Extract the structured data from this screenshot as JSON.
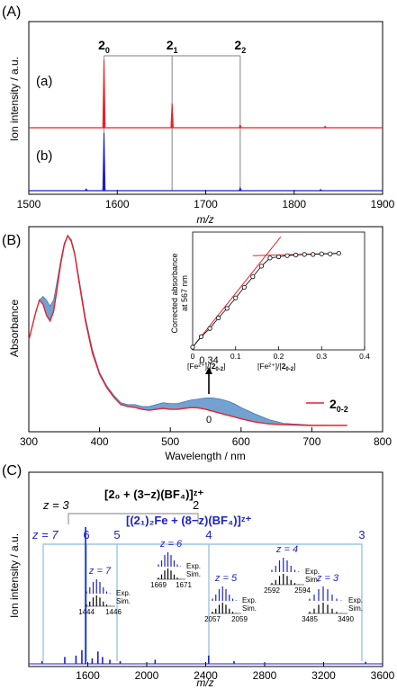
{
  "panelA": {
    "label": "(A)",
    "ylabel": "Ion intensity / a.u.",
    "xlabel": "m/z",
    "trace_a_label": "(a)",
    "trace_b_label": "(b)",
    "peak_labels": [
      {
        "base": "2",
        "sub": "0",
        "mz": 1585
      },
      {
        "base": "2",
        "sub": "1",
        "mz": 1662
      },
      {
        "base": "2",
        "sub": "2",
        "mz": 1739
      }
    ],
    "colors": {
      "a": "#e8202a",
      "b": "#1b20c8"
    }
  },
  "panelB": {
    "label": "(B)",
    "ylabel": "Absorbance",
    "xlabel": "Wavelength / nm",
    "legend_base": "2",
    "legend_sub": "0-2",
    "arrow_top": "0.34",
    "arrow_bottom": "0",
    "inset": {
      "ylabel_line1": "Corrected absorbance",
      "ylabel_line2": "at 567 nm",
      "xlabel_left_line1": "[Fe²⁺]/[",
      "xlabel_left_bold": "2",
      "xlabel_left_sub": "0-2",
      "xlabel_right_pre": "[Fe²⁺]/[",
      "xlabel_right_bold": "2",
      "xlabel_right_sub": "0-2"
    }
  },
  "panelC": {
    "label": "(C)",
    "ylabel": "Ion intensity / a.u.",
    "xlabel": "m/z",
    "series1_label": "[2₀ + (3−z)(BF₄)]ᶻ⁺",
    "series1_z_prefix": "z = 3",
    "series1_z_end": "2",
    "series2_label": "[(2₁)₂Fe + (8−z)(BF₄)]ᶻ⁺",
    "series2_z_prefix": "z = 7",
    "series2_z": [
      "6",
      "5",
      "4",
      "3"
    ],
    "insets": [
      {
        "z": "z = 7",
        "ticks": [
          "1444",
          "1446"
        ]
      },
      {
        "z": "z = 6",
        "ticks": [
          "1669",
          "1671"
        ]
      },
      {
        "z": "z = 5",
        "ticks": [
          "2057",
          "2059"
        ]
      },
      {
        "z": "z = 4",
        "ticks": [
          "2592",
          "2594"
        ]
      },
      {
        "z": "z = 3",
        "ticks": [
          "3485",
          "3490"
        ]
      }
    ],
    "exp_label": "Exp.",
    "sim_label": "Sim."
  },
  "chart_data": [
    {
      "type": "line",
      "panel": "A",
      "xlim": [
        1500,
        1900
      ],
      "xticks": [
        1500,
        1600,
        1700,
        1800,
        1900
      ],
      "series": [
        {
          "name": "(a)",
          "peaks": [
            [
              1585,
              1.0
            ],
            [
              1662,
              0.36
            ],
            [
              1739,
              0.04
            ],
            [
              1835,
              0.02
            ]
          ]
        },
        {
          "name": "(b)",
          "peaks": [
            [
              1585,
              1.0
            ],
            [
              1739,
              0.05
            ],
            [
              1565,
              0.03
            ],
            [
              1830,
              0.02
            ]
          ]
        }
      ]
    },
    {
      "type": "line",
      "panel": "B",
      "xlim": [
        300,
        800
      ],
      "xticks": [
        300,
        400,
        500,
        600,
        700,
        800
      ],
      "spectrum_red": [
        [
          300,
          0.45
        ],
        [
          310,
          0.6
        ],
        [
          315,
          0.66
        ],
        [
          320,
          0.64
        ],
        [
          325,
          0.58
        ],
        [
          330,
          0.55
        ],
        [
          335,
          0.6
        ],
        [
          340,
          0.72
        ],
        [
          345,
          0.85
        ],
        [
          350,
          0.95
        ],
        [
          355,
          1.0
        ],
        [
          360,
          0.97
        ],
        [
          365,
          0.9
        ],
        [
          370,
          0.78
        ],
        [
          380,
          0.55
        ],
        [
          390,
          0.38
        ],
        [
          400,
          0.27
        ],
        [
          410,
          0.2
        ],
        [
          420,
          0.15
        ],
        [
          430,
          0.11
        ],
        [
          440,
          0.1
        ],
        [
          450,
          0.095
        ],
        [
          460,
          0.085
        ],
        [
          470,
          0.08
        ],
        [
          480,
          0.085
        ],
        [
          490,
          0.09
        ],
        [
          500,
          0.085
        ],
        [
          510,
          0.085
        ],
        [
          520,
          0.09
        ],
        [
          530,
          0.095
        ],
        [
          540,
          0.092
        ],
        [
          550,
          0.085
        ],
        [
          560,
          0.075
        ],
        [
          570,
          0.065
        ],
        [
          580,
          0.055
        ],
        [
          590,
          0.045
        ],
        [
          600,
          0.035
        ],
        [
          620,
          0.018
        ],
        [
          640,
          0.008
        ],
        [
          660,
          0.004
        ],
        [
          700,
          0.0
        ],
        [
          750,
          0.0
        ]
      ],
      "spectrum_blue_top": [
        [
          300,
          0.45
        ],
        [
          310,
          0.6
        ],
        [
          315,
          0.66
        ],
        [
          320,
          0.68
        ],
        [
          325,
          0.66
        ],
        [
          330,
          0.63
        ],
        [
          335,
          0.66
        ],
        [
          340,
          0.76
        ],
        [
          345,
          0.87
        ],
        [
          350,
          0.96
        ],
        [
          355,
          1.0
        ],
        [
          360,
          0.98
        ],
        [
          365,
          0.91
        ],
        [
          370,
          0.8
        ],
        [
          380,
          0.57
        ],
        [
          390,
          0.4
        ],
        [
          400,
          0.28
        ],
        [
          410,
          0.21
        ],
        [
          420,
          0.16
        ],
        [
          430,
          0.12
        ],
        [
          440,
          0.11
        ],
        [
          450,
          0.11
        ],
        [
          460,
          0.1
        ],
        [
          470,
          0.1
        ],
        [
          480,
          0.11
        ],
        [
          490,
          0.12
        ],
        [
          500,
          0.115
        ],
        [
          510,
          0.115
        ],
        [
          520,
          0.125
        ],
        [
          530,
          0.135
        ],
        [
          540,
          0.14
        ],
        [
          550,
          0.145
        ],
        [
          560,
          0.145
        ],
        [
          570,
          0.14
        ],
        [
          580,
          0.13
        ],
        [
          590,
          0.115
        ],
        [
          600,
          0.095
        ],
        [
          620,
          0.06
        ],
        [
          640,
          0.03
        ],
        [
          660,
          0.012
        ],
        [
          700,
          0.002
        ],
        [
          750,
          0.0
        ]
      ],
      "inset": {
        "xlim": [
          0,
          0.4
        ],
        "xticks": [
          0,
          0.1,
          0.2,
          0.3,
          0.4
        ],
        "points": [
          [
            0,
            0.0
          ],
          [
            0.02,
            0.09
          ],
          [
            0.04,
            0.16
          ],
          [
            0.06,
            0.25
          ],
          [
            0.08,
            0.33
          ],
          [
            0.1,
            0.42
          ],
          [
            0.12,
            0.51
          ],
          [
            0.14,
            0.6
          ],
          [
            0.16,
            0.69
          ],
          [
            0.18,
            0.76
          ],
          [
            0.2,
            0.77
          ],
          [
            0.22,
            0.78
          ],
          [
            0.24,
            0.785
          ],
          [
            0.26,
            0.79
          ],
          [
            0.28,
            0.79
          ],
          [
            0.3,
            0.795
          ],
          [
            0.32,
            0.795
          ],
          [
            0.34,
            0.8
          ]
        ]
      }
    },
    {
      "type": "bar",
      "panel": "C",
      "xlim": [
        1200,
        3600
      ],
      "xticks": [
        1600,
        2000,
        2400,
        2800,
        3200,
        3600
      ],
      "peaks": [
        [
          1290,
          0.02
        ],
        [
          1444,
          0.05
        ],
        [
          1520,
          0.06
        ],
        [
          1560,
          0.1
        ],
        [
          1585,
          1.0
        ],
        [
          1630,
          0.04
        ],
        [
          1669,
          0.09
        ],
        [
          1700,
          0.05
        ],
        [
          1750,
          0.03
        ],
        [
          1820,
          0.02
        ],
        [
          2057,
          0.03
        ],
        [
          2420,
          0.06
        ],
        [
          2592,
          0.02
        ],
        [
          3485,
          0.015
        ]
      ]
    }
  ]
}
